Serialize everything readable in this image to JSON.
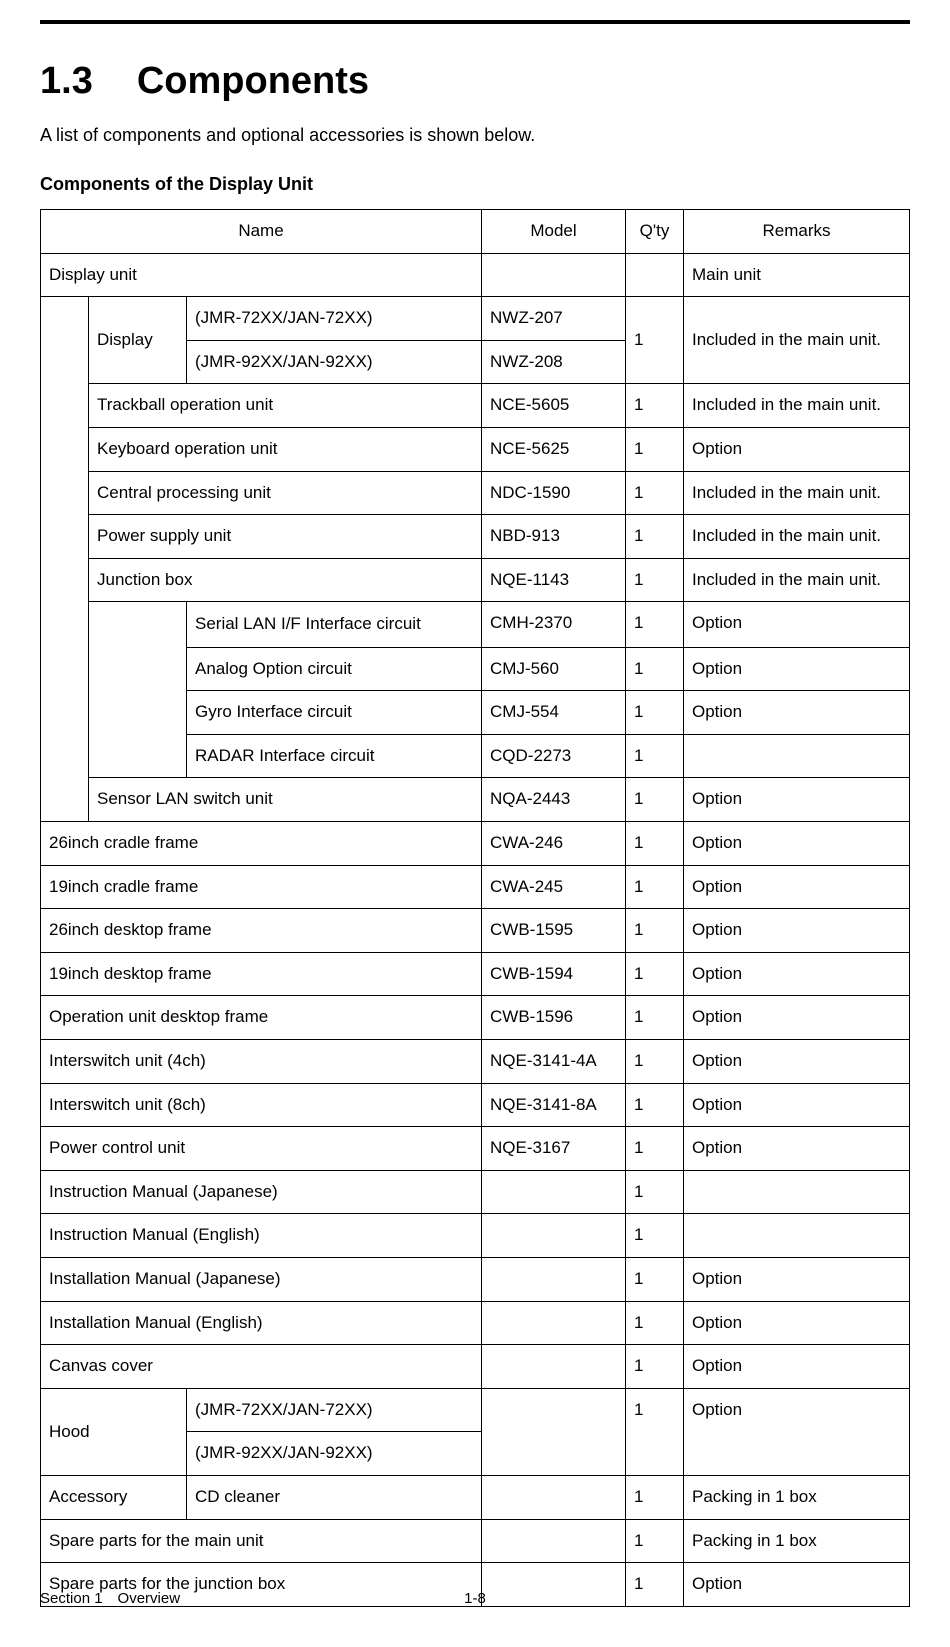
{
  "heading_number": "1.3",
  "heading_title": "Components",
  "intro_text": "A list of components and optional accessories is shown below.",
  "subheading": "Components of the Display Unit",
  "table_headers": {
    "name": "Name",
    "model": "Model",
    "qty": "Q'ty",
    "remarks": "Remarks"
  },
  "rows": {
    "display_unit": {
      "name": "Display unit",
      "model": "",
      "qty": "",
      "remarks": "Main unit"
    },
    "display": {
      "label": "Display"
    },
    "display_a": {
      "variant": "(JMR-72XX/JAN-72XX)",
      "model": "NWZ-207",
      "qty": "1",
      "remarks": "Included in the main unit."
    },
    "display_b": {
      "variant": "(JMR-92XX/JAN-92XX)",
      "model": "NWZ-208"
    },
    "trackball": {
      "name": "Trackball operation unit",
      "model": "NCE-5605",
      "qty": "1",
      "remarks": "Included in the main unit."
    },
    "keyboard": {
      "name": "Keyboard operation unit",
      "model": "NCE-5625",
      "qty": "1",
      "remarks": "Option"
    },
    "cpu": {
      "name": "Central processing unit",
      "model": "NDC-1590",
      "qty": "1",
      "remarks": "Included in the main unit."
    },
    "psu": {
      "name": "Power supply unit",
      "model": "NBD-913",
      "qty": "1",
      "remarks": "Included in the main unit."
    },
    "junction": {
      "name": "Junction box",
      "model": "NQE-1143",
      "qty": "1",
      "remarks": "Included in the main unit."
    },
    "jc_serial": {
      "name": "Serial LAN I/F Interface circuit",
      "model": "CMH-2370",
      "qty": "1",
      "remarks": "Option"
    },
    "jc_analog": {
      "name": "Analog Option circuit",
      "model": "CMJ-560",
      "qty": "1",
      "remarks": "Option"
    },
    "jc_gyro": {
      "name": "Gyro Interface circuit",
      "model": "CMJ-554",
      "qty": "1",
      "remarks": "Option"
    },
    "jc_radar": {
      "name": "RADAR Interface circuit",
      "model": "CQD-2273",
      "qty": "1",
      "remarks": ""
    },
    "sensor_lan": {
      "name": "Sensor LAN switch unit",
      "model": "NQA-2443",
      "qty": "1",
      "remarks": "Option"
    },
    "cradle26": {
      "name": "26inch cradle frame",
      "model": "CWA-246",
      "qty": "1",
      "remarks": "Option"
    },
    "cradle19": {
      "name": "19inch cradle frame",
      "model": "CWA-245",
      "qty": "1",
      "remarks": "Option"
    },
    "desk26": {
      "name": "26inch desktop frame",
      "model": "CWB-1595",
      "qty": "1",
      "remarks": "Option"
    },
    "desk19": {
      "name": "19inch desktop frame",
      "model": "CWB-1594",
      "qty": "1",
      "remarks": "Option"
    },
    "opdesk": {
      "name": "Operation unit desktop frame",
      "model": "CWB-1596",
      "qty": "1",
      "remarks": "Option"
    },
    "isw4": {
      "name": "Interswitch unit (4ch)",
      "model": "NQE-3141-4A",
      "qty": "1",
      "remarks": "Option"
    },
    "isw8": {
      "name": "Interswitch unit (8ch)",
      "model": "NQE-3141-8A",
      "qty": "1",
      "remarks": "Option"
    },
    "pcu": {
      "name": "Power control unit",
      "model": "NQE-3167",
      "qty": "1",
      "remarks": "Option"
    },
    "manual_jp": {
      "name": "Instruction Manual (Japanese)",
      "model": "",
      "qty": "1",
      "remarks": ""
    },
    "manual_en": {
      "name": "Instruction Manual (English)",
      "model": "",
      "qty": "1",
      "remarks": ""
    },
    "install_jp": {
      "name": "Installation Manual (Japanese)",
      "model": "",
      "qty": "1",
      "remarks": "Option"
    },
    "install_en": {
      "name": "Installation Manual (English)",
      "model": "",
      "qty": "1",
      "remarks": "Option"
    },
    "canvas": {
      "name": "Canvas cover",
      "model": "",
      "qty": "1",
      "remarks": "Option"
    },
    "hood": {
      "name": "Hood",
      "qty": "1",
      "remarks": "Option"
    },
    "hood_a": {
      "variant": "(JMR-72XX/JAN-72XX)"
    },
    "hood_b": {
      "variant": "(JMR-92XX/JAN-92XX)"
    },
    "accessory": {
      "name": "Accessory",
      "sub": "CD cleaner",
      "model": "",
      "qty": "1",
      "remarks": "Packing in 1 box"
    },
    "spare_main": {
      "name": "Spare parts for the main unit",
      "model": "",
      "qty": "1",
      "remarks": "Packing in 1 box"
    },
    "spare_junction": {
      "name": "Spare parts for the junction box",
      "model": "",
      "qty": "1",
      "remarks": "Option"
    }
  },
  "footer_left": "Section 1 Overview",
  "footer_page": "1-8"
}
